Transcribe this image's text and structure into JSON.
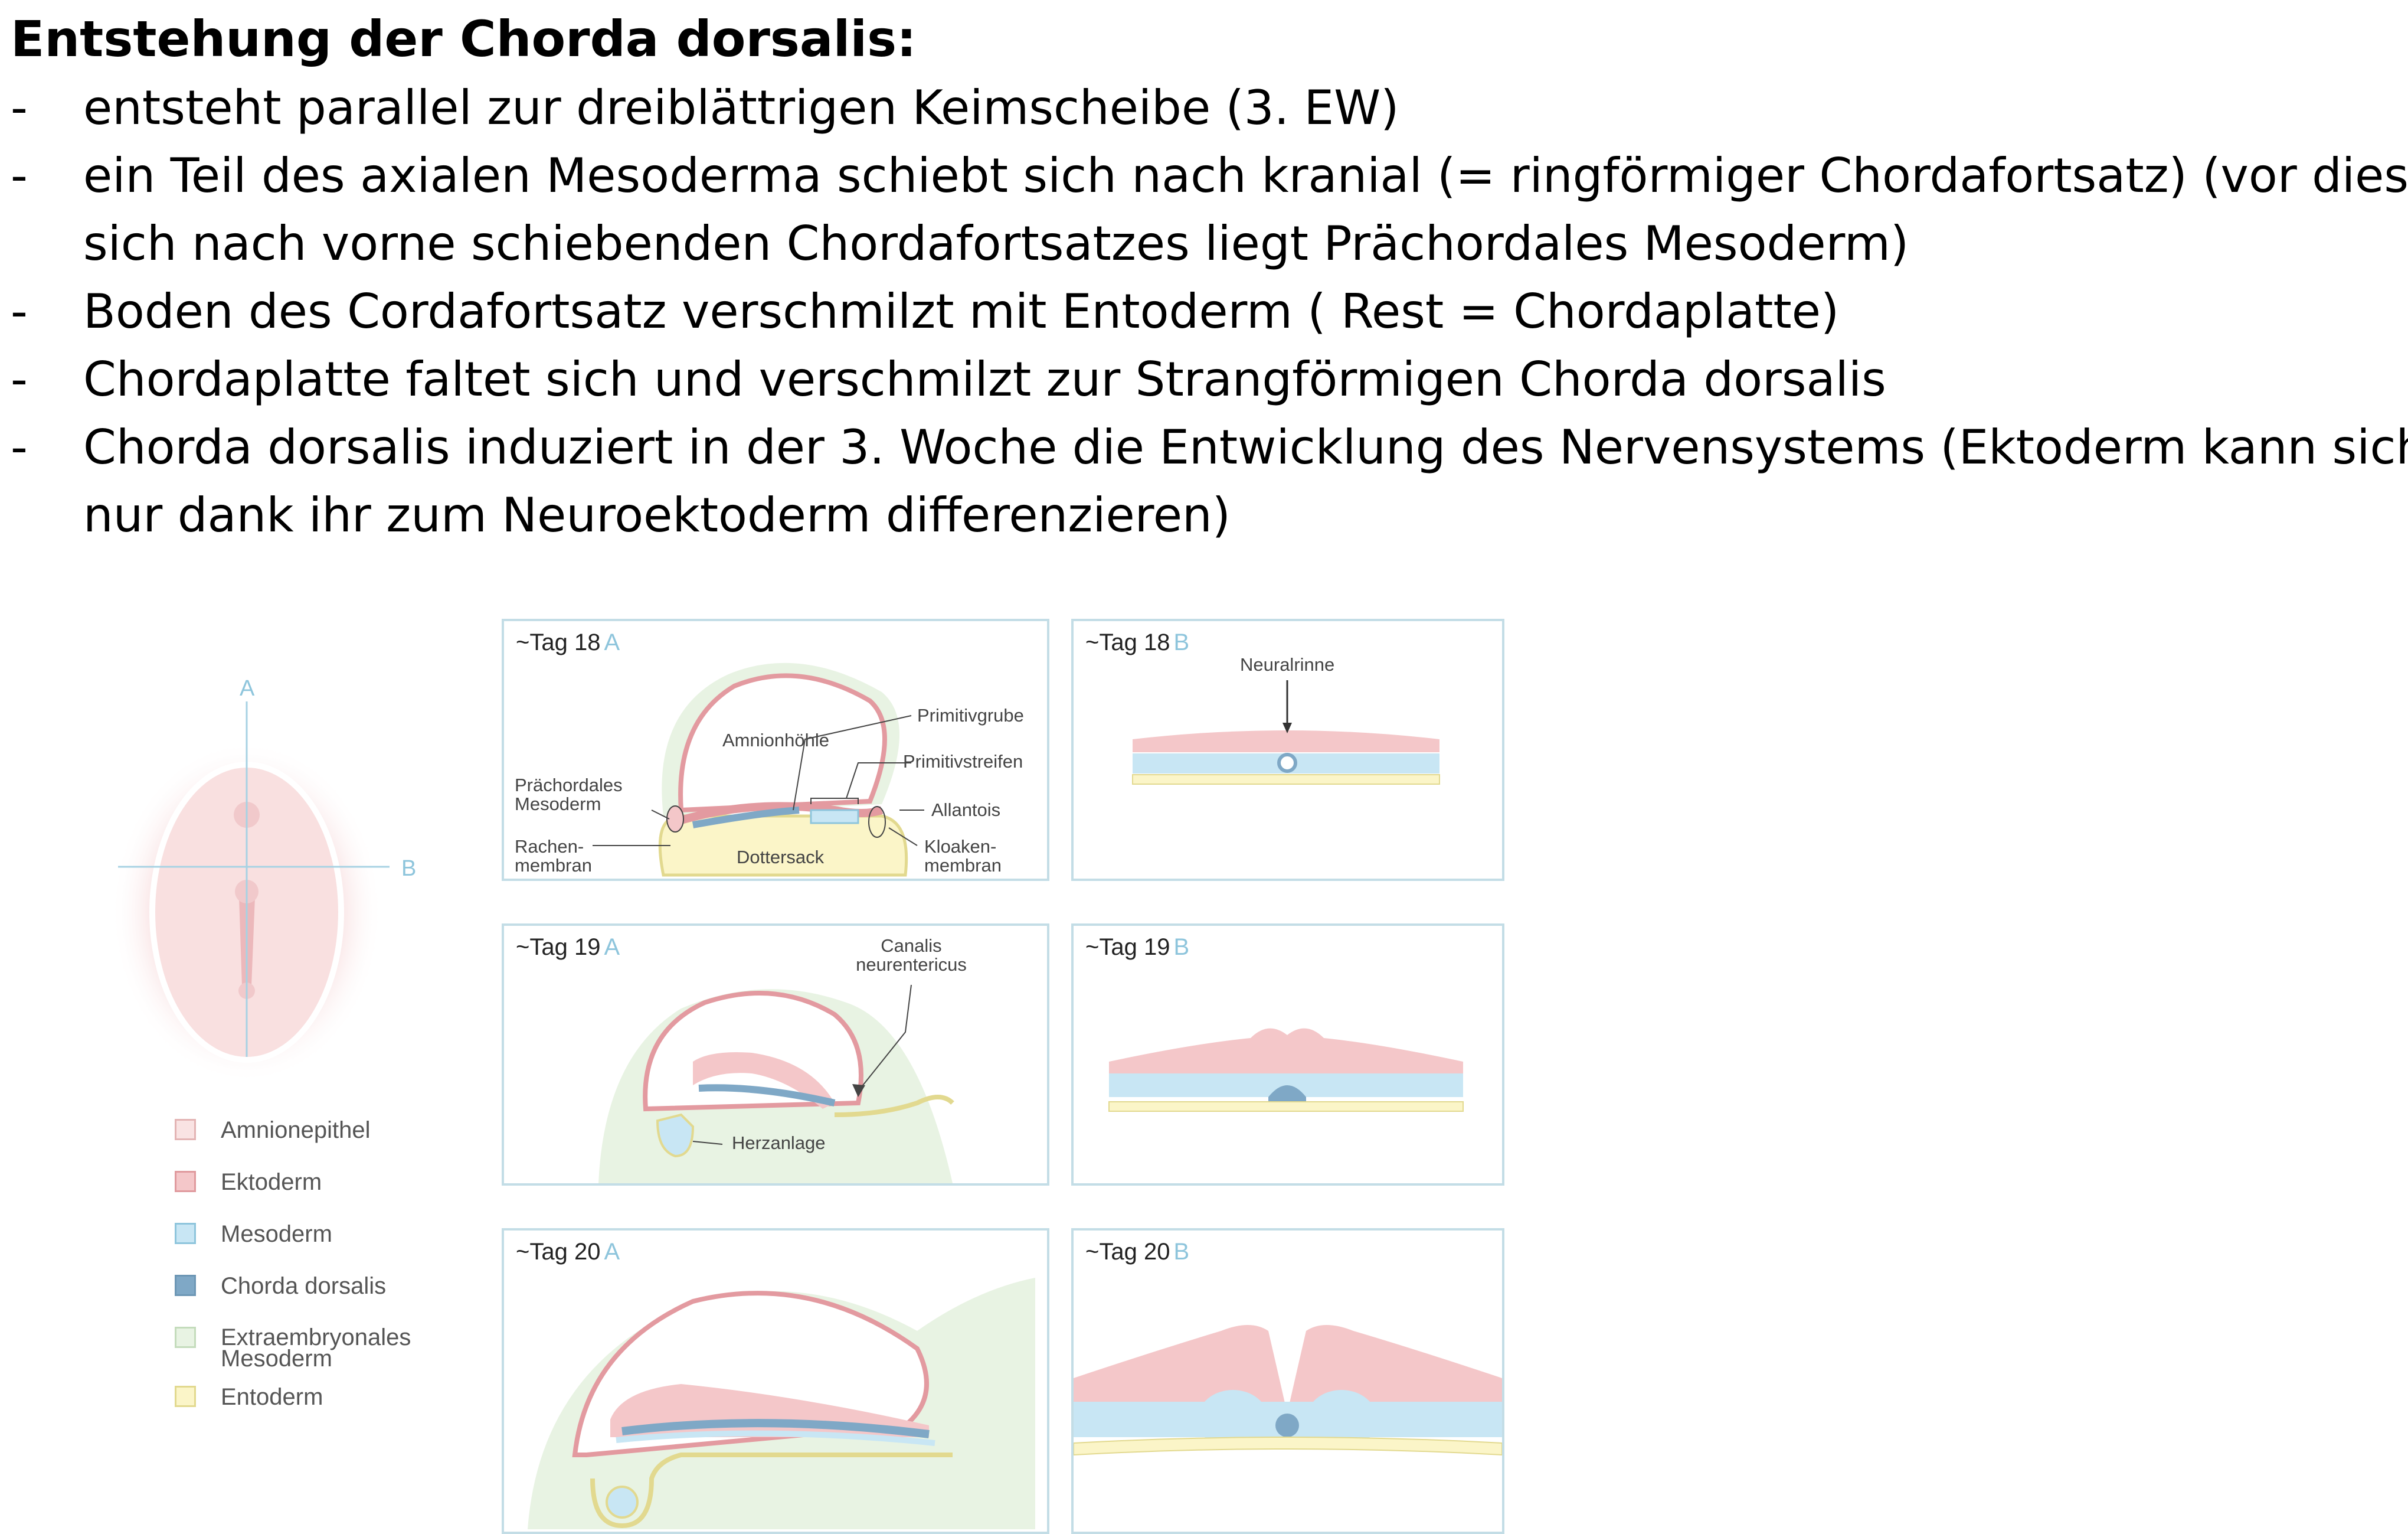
{
  "title": "Entstehung der Chorda dorsalis:",
  "bullets": [
    {
      "dash": "-",
      "lines": [
        "entsteht parallel zur dreiblättrigen Keimscheibe (3. EW)"
      ]
    },
    {
      "dash": "-",
      "lines": [
        "ein Teil des axialen Mesoderma schiebt sich nach kranial (= ringförmiger Chordafortsatz) (vor diesem",
        "sich nach vorne schiebenden Chordafortsatzes liegt Prächordales Mesoderm)"
      ]
    },
    {
      "dash": "-",
      "lines": [
        "Boden des Cordafortsatz verschmilzt mit Entoderm ( Rest = Chordaplatte)"
      ]
    },
    {
      "dash": "-",
      "lines": [
        "Chordaplatte faltet sich und verschmilzt zur Strangförmigen Chorda dorsalis"
      ]
    },
    {
      "dash": "-",
      "lines": [
        "Chorda dorsalis induziert in der 3. Woche die Entwicklung des Nervensystems (Ektoderm kann sich",
        "nur dank ihr zum Neuroektoderm differenzieren)"
      ]
    }
  ],
  "overview": {
    "axis_a": "A",
    "axis_b": "B"
  },
  "panels": {
    "day18a": {
      "label": "~Tag 18",
      "view": "A"
    },
    "day18b": {
      "label": "~Tag 18",
      "view": "B"
    },
    "day19a": {
      "label": "~Tag 19",
      "view": "A"
    },
    "day19b": {
      "label": "~Tag 19",
      "view": "B"
    },
    "day20a": {
      "label": "~Tag 20",
      "view": "A"
    },
    "day20b": {
      "label": "~Tag 20",
      "view": "B"
    }
  },
  "labels": {
    "amnionhoehle": "Amnionhöhle",
    "primitivgrube": "Primitivgrube",
    "primitivstreifen": "Primitivstreifen",
    "praechordales_1": "Prächordales",
    "praechordales_2": "Mesoderm",
    "allantois": "Allantois",
    "rachen_1": "Rachen-",
    "rachen_2": "membran",
    "dottersack": "Dottersack",
    "kloaken_1": "Kloaken-",
    "kloaken_2": "membran",
    "neuralrinne": "Neuralrinne",
    "canalis_1": "Canalis",
    "canalis_2": "neurentericus",
    "herzanlage": "Herzanlage"
  },
  "legend": [
    {
      "label": "Amnionepithel",
      "color": "#f9e3e3",
      "border": "#e3b4b4"
    },
    {
      "label": "Ektoderm",
      "color": "#f4c7c9",
      "border": "#e09a9e"
    },
    {
      "label": "Mesoderm",
      "color": "#c8e6f4",
      "border": "#8ec5dc"
    },
    {
      "label": "Chorda dorsalis",
      "color": "#7fa8c6",
      "border": "#6d97b5"
    },
    {
      "label": "Extraembryonales Mesoderm",
      "label_lines": [
        "Extraembryonales",
        "Mesoderm"
      ],
      "color": "#e8f3e3",
      "border": "#c4dcbc"
    },
    {
      "label": "Entoderm",
      "color": "#fbf5c8",
      "border": "#e2d98f"
    }
  ],
  "colors": {
    "ectoderm": "#f4c7c9",
    "ectoderm_line": "#e39aa0",
    "mesoderm": "#c8e6f4",
    "chorda": "#7fa8c6",
    "entoderm": "#fbf5c8",
    "extraembryonic": "#e8f3e3",
    "panel_border": "#c3dde6",
    "view_letter": "#8ec5dc"
  }
}
